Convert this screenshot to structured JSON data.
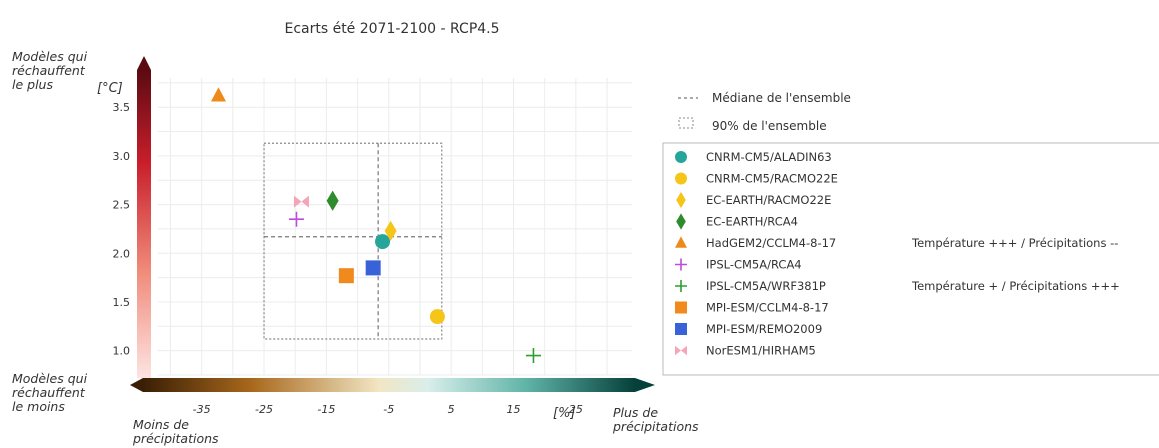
{
  "chart_data": {
    "type": "scatter",
    "title": "Ecarts été 2071-2100 - RCP4.5",
    "xlabel": "[%]",
    "ylabel": "[°C]",
    "xlim": [
      -42,
      34
    ],
    "ylim": [
      0.75,
      3.8
    ],
    "xticks": [
      -35,
      -25,
      -15,
      -5,
      5,
      15,
      25
    ],
    "yticks": [
      1.0,
      1.5,
      2.0,
      2.5,
      3.0,
      3.5
    ],
    "xtick_labels": [
      "-35",
      "-25",
      "-15",
      "-5",
      "5",
      "15",
      "25"
    ],
    "ytick_labels": [
      "1.0",
      "1.5",
      "2.0",
      "2.5",
      "3.0",
      "3.5"
    ],
    "grid": true,
    "legend_position": "right",
    "median": {
      "x": -6.7,
      "y": 2.17
    },
    "range_90": {
      "x": [
        -25,
        3.5
      ],
      "y": [
        1.12,
        3.13
      ]
    },
    "series": [
      {
        "name": "CNRM-CM5/ALADIN63",
        "marker": "circle",
        "color": "#26a69a",
        "x": -6.0,
        "y": 2.12
      },
      {
        "name": "CNRM-CM5/RACMO22E",
        "marker": "circle",
        "color": "#f5c518",
        "x": 2.8,
        "y": 1.35
      },
      {
        "name": "EC-EARTH/RACMO22E",
        "marker": "diamond",
        "color": "#f5c518",
        "x": -4.7,
        "y": 2.23
      },
      {
        "name": "EC-EARTH/RCA4",
        "marker": "diamond",
        "color": "#2e8b2e",
        "x": -14.0,
        "y": 2.54
      },
      {
        "name": "HadGEM2/CCLM4-8-17",
        "marker": "triangle",
        "color": "#ee8a1a",
        "x": -32.3,
        "y": 3.62
      },
      {
        "name": "IPSL-CM5A/RCA4",
        "marker": "plus",
        "color": "#bf4bd9",
        "x": -19.8,
        "y": 2.35
      },
      {
        "name": "IPSL-CM5A/WRF381P",
        "marker": "plus",
        "color": "#2e9e2e",
        "x": 18.2,
        "y": 0.95
      },
      {
        "name": "MPI-ESM/CCLM4-8-17",
        "marker": "square",
        "color": "#f08a1c",
        "x": -11.8,
        "y": 1.77
      },
      {
        "name": "MPI-ESM/REMO2009",
        "marker": "square",
        "color": "#3a62d8",
        "x": -7.5,
        "y": 1.85
      },
      {
        "name": "NorESM1/HIRHAM5",
        "marker": "bowtie",
        "color": "#f4a6b8",
        "x": -19.0,
        "y": 2.53
      }
    ],
    "legend_header": [
      {
        "label": "Médiane de l'ensemble",
        "symbol": "dashed-line"
      },
      {
        "label": "90% de l'ensemble",
        "symbol": "dotted-box"
      }
    ],
    "annotations": [
      {
        "series": "HadGEM2/CCLM4-8-17",
        "text": "Température +++ / Précipitations --"
      },
      {
        "series": "IPSL-CM5A/WRF381P",
        "text": "Température + / Précipitations +++"
      }
    ],
    "side_labels": {
      "temp_high": "Modèles qui réchauffent le plus",
      "temp_low": "Modèles qui réchauffent le moins",
      "precip_low": "Moins de précipitations",
      "precip_high": "Plus de précipitations"
    },
    "colorbar_colors": {
      "temperature": [
        "#fde4e1",
        "#f08a7a",
        "#c81e2b",
        "#5c0a12"
      ],
      "precipitation": [
        "#3a1f06",
        "#a8681c",
        "#f2e6c4",
        "#d8eeea",
        "#5fb3a7",
        "#06403a"
      ]
    }
  }
}
